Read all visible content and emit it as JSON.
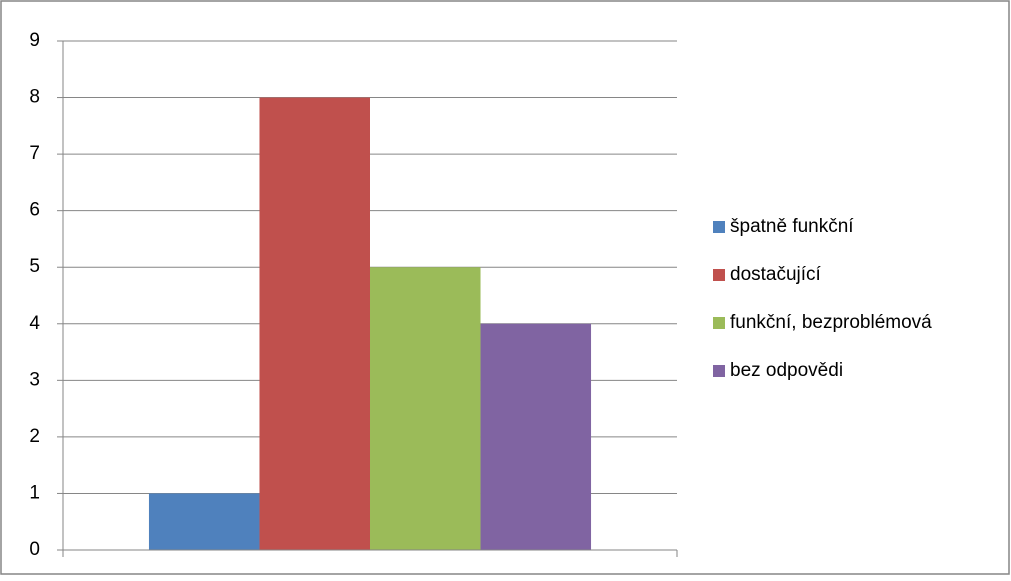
{
  "chart_data": {
    "type": "bar",
    "categories": [
      null
    ],
    "series": [
      {
        "name": "špatně funkční",
        "color": "#4f81bd",
        "values": [
          1
        ]
      },
      {
        "name": "dostačující",
        "color": "#c0504d",
        "values": [
          8
        ]
      },
      {
        "name": "funkční, bezproblémová",
        "color": "#9bbb59",
        "values": [
          5
        ]
      },
      {
        "name": "bez odpovědi",
        "color": "#8064a2",
        "values": [
          4
        ]
      }
    ],
    "ylim": [
      0,
      9
    ],
    "yticks": [
      0,
      1,
      2,
      3,
      4,
      5,
      6,
      7,
      8,
      9
    ],
    "grid": true,
    "legend": "right"
  }
}
